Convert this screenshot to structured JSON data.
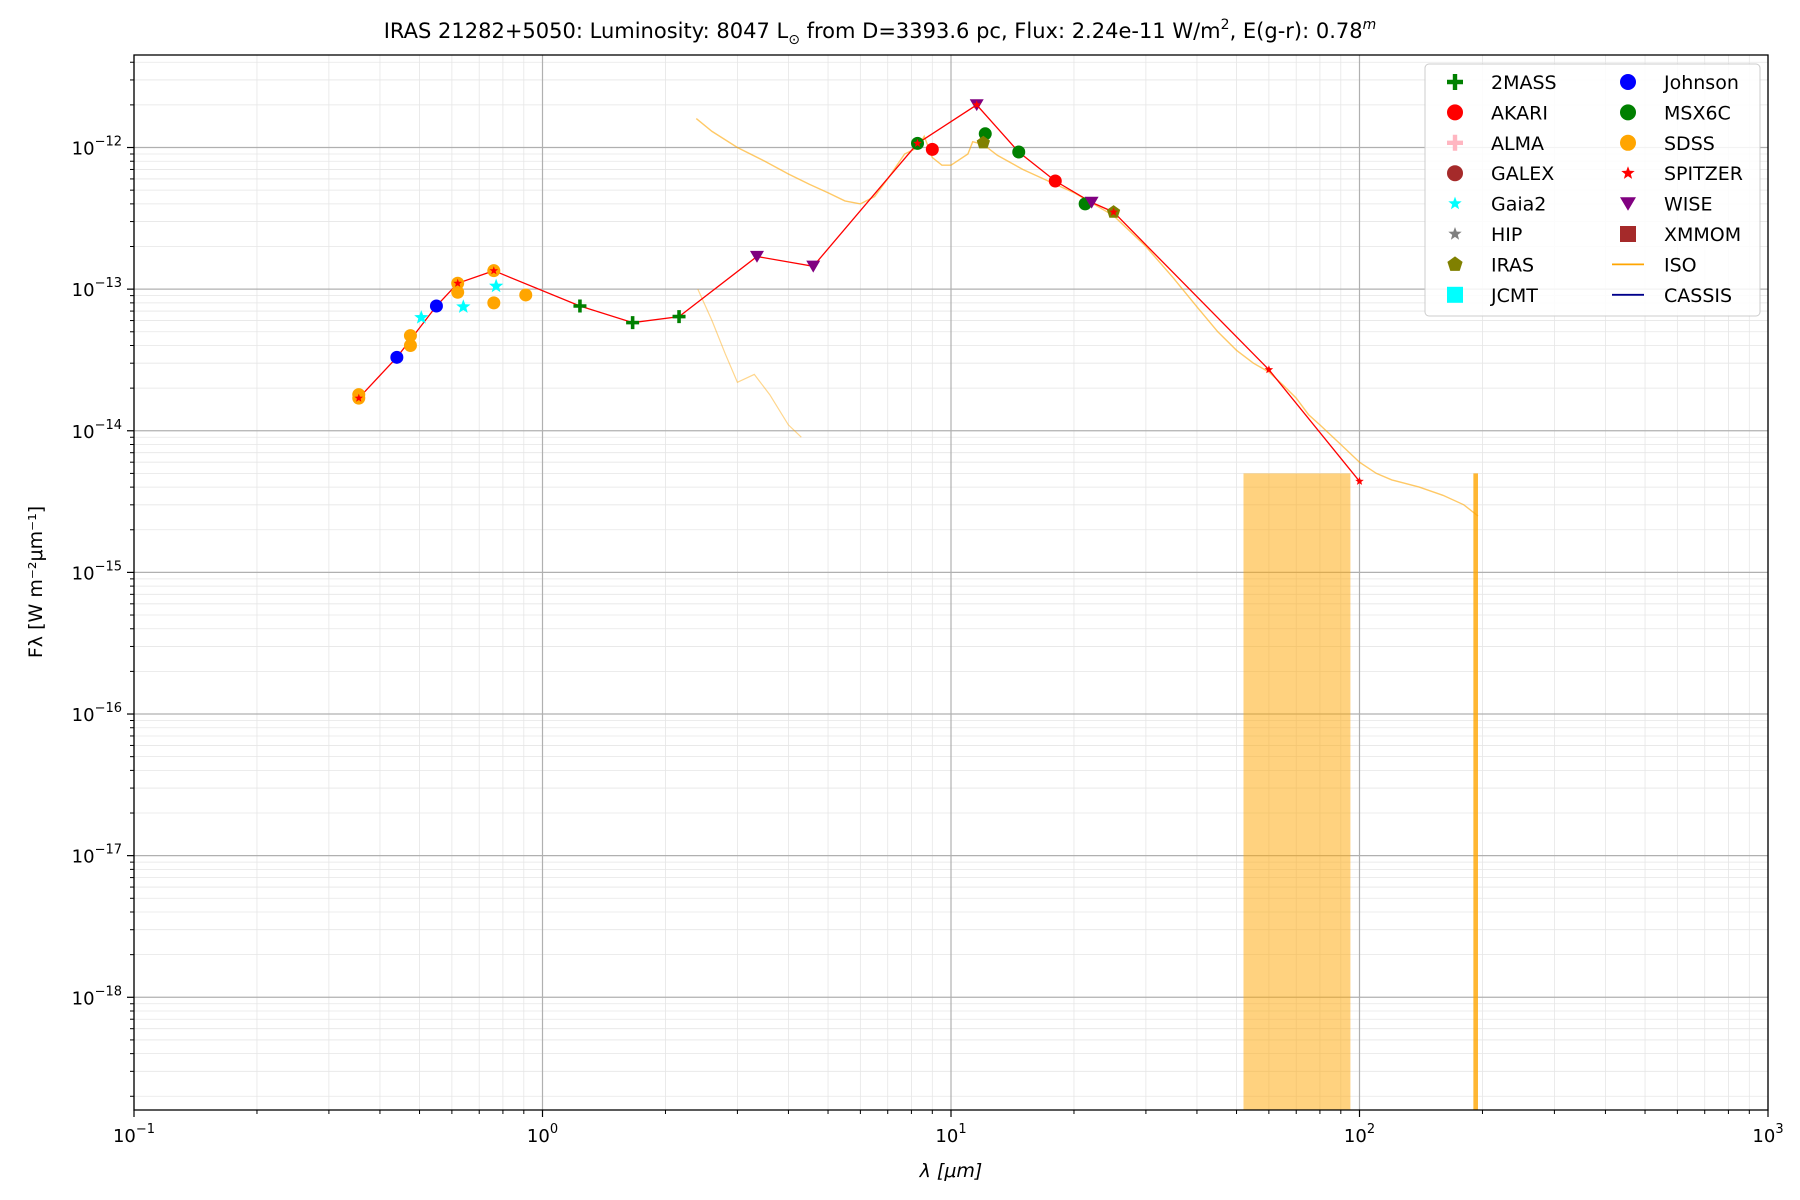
{
  "chart_data": {
    "type": "scatter",
    "title": "IRAS 21282+5050:  Luminosity: 8047 L⊙ from D=3393.6 pc, Flux: 2.24e-11 W/m², E(g-r): 0.78ᵐ",
    "title_parts": {
      "prefix": "IRAS 21282+5050:  Luminosity: 8047 L",
      "sun": "⊙",
      "mid": " from D=3393.6 pc, Flux: 2.24e-11 W/m",
      "sq": "2",
      "tail": ", E(g-r): 0.78",
      "mag": "m"
    },
    "xlabel": "λ [μm]",
    "ylabel": "Fλ [W m⁻²μm⁻¹]",
    "xscale": "log",
    "yscale": "log",
    "xlim": [
      0.1,
      1000
    ],
    "ylim": [
      1.6e-19,
      4.5e-12
    ],
    "grid": true,
    "legend_position": "top-right",
    "x_ticks": [
      {
        "value": 0.1,
        "base": "10",
        "exp": "−1"
      },
      {
        "value": 1,
        "base": "10",
        "exp": "0"
      },
      {
        "value": 10,
        "base": "10",
        "exp": "1"
      },
      {
        "value": 100,
        "base": "10",
        "exp": "2"
      },
      {
        "value": 1000,
        "base": "10",
        "exp": "3"
      }
    ],
    "y_ticks": [
      {
        "value": 1e-18,
        "base": "10",
        "exp": "−18"
      },
      {
        "value": 1e-17,
        "base": "10",
        "exp": "−17"
      },
      {
        "value": 1e-16,
        "base": "10",
        "exp": "−16"
      },
      {
        "value": 1e-15,
        "base": "10",
        "exp": "−15"
      },
      {
        "value": 1e-14,
        "base": "10",
        "exp": "−14"
      },
      {
        "value": 1e-13,
        "base": "10",
        "exp": "−13"
      },
      {
        "value": 1e-12,
        "base": "10",
        "exp": "−12"
      }
    ],
    "legend": [
      {
        "name": "2MASS",
        "marker": "plus",
        "color": "#008000"
      },
      {
        "name": "Johnson",
        "marker": "circle",
        "color": "#0000ff"
      },
      {
        "name": "AKARI",
        "marker": "circle",
        "color": "#ff0000"
      },
      {
        "name": "MSX6C",
        "marker": "circle",
        "color": "#008000"
      },
      {
        "name": "ALMA",
        "marker": "plus",
        "color": "#ffb6c1"
      },
      {
        "name": "SDSS",
        "marker": "circle",
        "color": "#ffa500"
      },
      {
        "name": "GALEX",
        "marker": "circle",
        "color": "#a52a2a"
      },
      {
        "name": "SPITZER",
        "marker": "star",
        "color": "#ff0000"
      },
      {
        "name": "Gaia2",
        "marker": "star",
        "color": "#00ffff"
      },
      {
        "name": "WISE",
        "marker": "triangle-down",
        "color": "#800080"
      },
      {
        "name": "HIP",
        "marker": "star",
        "color": "#808080"
      },
      {
        "name": "XMMOM",
        "marker": "square",
        "color": "#a52a2a"
      },
      {
        "name": "IRAS",
        "marker": "pentagon",
        "color": "#808000"
      },
      {
        "name": "ISO",
        "marker": "line",
        "color": "#ffa500"
      },
      {
        "name": "JCMT",
        "marker": "square",
        "color": "#00ffff"
      },
      {
        "name": "CASSIS",
        "marker": "line",
        "color": "#00008b"
      }
    ],
    "photometry": [
      {
        "name": "2MASS",
        "marker": "plus",
        "color": "#008000",
        "x": [
          1.235,
          1.662,
          2.159
        ],
        "y": [
          7.6e-14,
          5.8e-14,
          6.4e-14
        ]
      },
      {
        "name": "Johnson",
        "marker": "circle",
        "color": "#0000ff",
        "x": [
          0.44,
          0.55
        ],
        "y": [
          3.3e-14,
          7.6e-14
        ]
      },
      {
        "name": "AKARI",
        "marker": "circle",
        "color": "#ff0000",
        "x": [
          9.0,
          18.0
        ],
        "y": [
          9.7e-13,
          5.8e-13
        ]
      },
      {
        "name": "MSX6C",
        "marker": "circle",
        "color": "#008000",
        "x": [
          8.28,
          12.13,
          14.65,
          21.3
        ],
        "y": [
          1.07e-12,
          1.25e-12,
          9.3e-13,
          4e-13
        ]
      },
      {
        "name": "SDSS",
        "marker": "circle",
        "color": "#ffa500",
        "x": [
          0.355,
          0.355,
          0.475,
          0.475,
          0.62,
          0.62,
          0.76,
          0.76,
          0.91
        ],
        "y": [
          1.8e-14,
          1.7e-14,
          4.7e-14,
          4e-14,
          1.1e-13,
          9.5e-14,
          1.35e-13,
          8e-14,
          9.1e-14
        ]
      },
      {
        "name": "Gaia2",
        "marker": "star",
        "color": "#00ffff",
        "x": [
          0.505,
          0.64,
          0.77
        ],
        "y": [
          6.3e-14,
          7.5e-14,
          1.05e-13
        ]
      },
      {
        "name": "WISE",
        "marker": "triangle-down",
        "color": "#800080",
        "x": [
          3.35,
          4.6,
          11.56,
          22.09
        ],
        "y": [
          1.7e-13,
          1.45e-13,
          2e-12,
          4.1e-13
        ]
      },
      {
        "name": "IRAS",
        "marker": "pentagon",
        "color": "#808000",
        "x": [
          12.0,
          25.0
        ],
        "y": [
          1.08e-12,
          3.5e-13
        ]
      },
      {
        "name": "SPITZER",
        "marker": "star",
        "color": "#ff0000",
        "x": [
          0.355,
          0.62,
          0.76,
          8.28,
          11.56,
          25.0,
          60.0,
          100.0
        ],
        "y": [
          1.7e-14,
          1.1e-13,
          1.35e-13,
          1.07e-12,
          2e-12,
          3.5e-13,
          2.7e-14,
          4.4e-15
        ]
      }
    ],
    "sed_line": {
      "color": "#ff0000",
      "x": [
        0.355,
        0.44,
        0.55,
        0.62,
        0.76,
        1.235,
        1.662,
        2.159,
        3.35,
        4.6,
        8.28,
        11.56,
        14.65,
        18.0,
        22.09,
        25.0,
        60.0,
        100.0
      ],
      "y": [
        1.7e-14,
        3.3e-14,
        7.6e-14,
        1.1e-13,
        1.35e-13,
        7.6e-14,
        5.8e-14,
        6.4e-14,
        1.7e-13,
        1.45e-13,
        1.07e-12,
        2e-12,
        9.3e-13,
        5.8e-13,
        4.1e-13,
        3.5e-13,
        2.7e-14,
        4.4e-15
      ]
    },
    "spectrum": {
      "name": "ISO",
      "color": "#ffa500",
      "upper_x": [
        2.38,
        2.6,
        3.0,
        3.5,
        4.0,
        4.5,
        5.0,
        5.5,
        6.0,
        6.5,
        7.0,
        7.7,
        8.3,
        8.6,
        9.0,
        9.5,
        10.0,
        11.0,
        11.3,
        12.0,
        13.0,
        15.0,
        18.0,
        20.0,
        25.0,
        30.0,
        35.0,
        40.0,
        45.0,
        50.0,
        55.0,
        60.0,
        65.0,
        70.0,
        75.0,
        80.0,
        90.0,
        100.0,
        110.0,
        120.0,
        140.0,
        160.0,
        180.0,
        195.0
      ],
      "upper_y": [
        1.6e-12,
        1.3e-12,
        1e-12,
        8e-13,
        6.5e-13,
        5.5e-13,
        4.8e-13,
        4.2e-13,
        4e-13,
        4.5e-13,
        6e-13,
        9e-13,
        1e-12,
        1.2e-12,
        8.5e-13,
        7.5e-13,
        7.5e-13,
        9e-13,
        1.1e-12,
        1.05e-12,
        8.8e-13,
        7e-13,
        5.5e-13,
        4.8e-13,
        3.3e-13,
        2e-13,
        1.2e-13,
        7.5e-14,
        5e-14,
        3.7e-14,
        3e-14,
        2.6e-14,
        2.1e-14,
        1.7e-14,
        1.3e-14,
        1.1e-14,
        8e-15,
        6e-15,
        5e-15,
        4.5e-15,
        4e-15,
        3.5e-15,
        3e-15,
        2.5e-15
      ],
      "lower_x": [
        2.4,
        2.6,
        2.8,
        3.0,
        3.3,
        3.6,
        4.0,
        4.3
      ],
      "lower_y": [
        1e-13,
        6e-14,
        3.5e-14,
        2.2e-14,
        2.5e-14,
        1.8e-14,
        1.1e-14,
        9e-15
      ],
      "noise_band": {
        "x": [
          52.0,
          95.0
        ],
        "y": [
          5e-15,
          1.6e-19
        ]
      },
      "tail_band": {
        "x": [
          190.0,
          195.0
        ],
        "y": [
          5e-15,
          1.6e-19
        ]
      }
    }
  }
}
